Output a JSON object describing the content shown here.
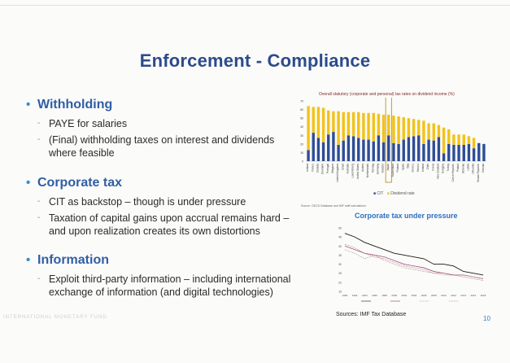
{
  "slide": {
    "title": "Enforcement - Compliance",
    "sections": [
      {
        "heading": "Withholding",
        "items": [
          "PAYE for salaries",
          "(Final) withholding taxes on interest and dividends where feasible"
        ]
      },
      {
        "heading": "Corporate tax",
        "items": [
          "CIT as backstop – though is under pressure",
          "Taxation of capital gains upon accrual remains hard – and upon realization creates its own distortions"
        ]
      },
      {
        "heading": "Information",
        "items": [
          "Exploit third-party information – including international exchange of information (and digital technologies)"
        ]
      }
    ],
    "footer_org": "INTERNATIONAL MONETARY FUND",
    "page_number": "10"
  },
  "colors": {
    "title": "#2c4b8c",
    "heading": "#2f5ea6",
    "bullet": "#2f8fd6",
    "cit_bar": "#2e4d96",
    "dividend_bar": "#f2c21a",
    "highlight_box": "#b38a00"
  },
  "chart_data": [
    {
      "type": "bar",
      "stacked": true,
      "title": "Overall statutory (corporate and personal) tax rates on dividend income (%)",
      "ylim": [
        0,
        70
      ],
      "yticks": [
        "0",
        "10",
        "20",
        "30",
        "40",
        "50",
        "60",
        "70"
      ],
      "legend": [
        "CIT",
        "Dividend rate"
      ],
      "legend_position": "bottom",
      "highlight_index": 16,
      "source": "Source: OECD Database and IMF staff calculations.",
      "categories": [
        "Ireland",
        "France",
        "Canada",
        "Denmark",
        "Portugal",
        "Belgium",
        "United Kingdom",
        "Israel",
        "Australia",
        "Luxembourg",
        "United States",
        "Austria",
        "Netherlands",
        "Norway",
        "Germany",
        "Sweden",
        "Japan",
        "Switzerland",
        "Finland",
        "Spain",
        "Italy",
        "Greece",
        "Mexico",
        "Iceland",
        "Chile",
        "Korea",
        "New Zealand",
        "Hungary",
        "Turkey",
        "Czech Republic",
        "Poland",
        "Slovenia",
        "Latvia",
        "Lithuania",
        "Slovak Republic",
        "Estonia"
      ],
      "series": [
        {
          "name": "CIT",
          "values": [
            13,
            33,
            27,
            22,
            31,
            34,
            19,
            24,
            30,
            29,
            27,
            25,
            25,
            23,
            30,
            22,
            30,
            21,
            20,
            25,
            28,
            29,
            30,
            20,
            25,
            24,
            28,
            9,
            20,
            19,
            19,
            19,
            20,
            15,
            21,
            20
          ]
        },
        {
          "name": "Dividend rate",
          "values": [
            51,
            30,
            36,
            40,
            28,
            24,
            39,
            33,
            27,
            28,
            30,
            31,
            31,
            33,
            25,
            32,
            24,
            32,
            32,
            26,
            22,
            20,
            18,
            27,
            19,
            20,
            14,
            30,
            17,
            12,
            12,
            12,
            9,
            12,
            0,
            0
          ]
        }
      ]
    },
    {
      "type": "line",
      "title": "Corporate tax under pressure",
      "source": "Sources: IMF Tax Database",
      "ylim": [
        15,
        50
      ],
      "yticks": [
        "15",
        "20",
        "25",
        "30",
        "35",
        "40",
        "45",
        "50"
      ],
      "x": [
        "1990",
        "1992",
        "1994",
        "1996",
        "1998",
        "2000",
        "2002",
        "2004",
        "2006",
        "2008",
        "2010",
        "2012",
        "2014",
        "2016",
        "2018"
      ],
      "series": [
        {
          "name": "",
          "values": [
            47,
            45,
            42,
            40,
            38,
            36,
            35,
            34,
            33,
            30,
            30,
            29,
            26,
            25,
            24
          ]
        },
        {
          "name": "",
          "values": [
            40,
            38,
            36,
            35,
            34,
            32,
            30,
            29,
            28,
            26,
            25,
            24,
            24,
            23,
            22
          ]
        },
        {
          "name": "",
          "values": [
            38,
            36,
            33,
            35,
            32,
            30,
            28,
            27,
            26,
            25,
            24,
            24,
            24,
            23,
            22
          ]
        },
        {
          "name": "",
          "values": [
            41,
            39,
            36,
            34,
            33,
            31,
            29,
            28,
            27,
            25,
            25,
            24,
            23,
            22,
            21
          ]
        }
      ],
      "legend_position": "bottom"
    }
  ]
}
